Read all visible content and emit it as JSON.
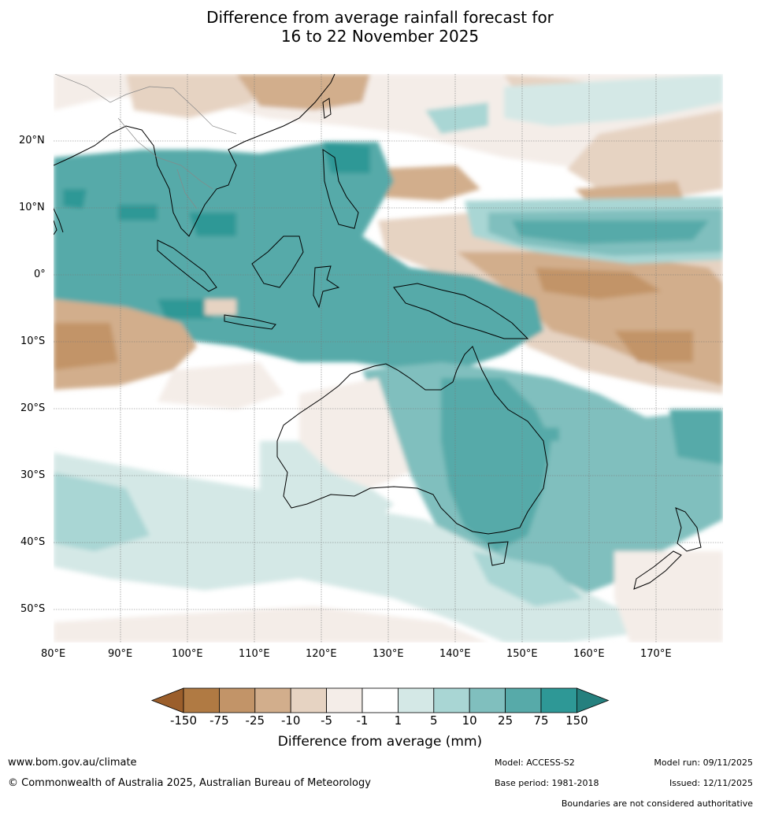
{
  "title": {
    "line1": "Difference from average rainfall forecast for",
    "line2": "16 to 22 November 2025"
  },
  "axes": {
    "lat_labels": [
      "20°N",
      "10°N",
      "0°",
      "10°S",
      "20°S",
      "30°S",
      "40°S",
      "50°S"
    ],
    "lon_labels": [
      "80°E",
      "90°E",
      "100°E",
      "110°E",
      "120°E",
      "130°E",
      "140°E",
      "150°E",
      "160°E",
      "170°E"
    ]
  },
  "colorbar": {
    "title": "Difference from average (mm)",
    "labels": [
      "-150",
      "-75",
      "-25",
      "-10",
      "-5",
      "-1",
      "1",
      "5",
      "10",
      "25",
      "75",
      "150"
    ],
    "colors": [
      "#9b5e2b",
      "#b07a43",
      "#c29468",
      "#d2ae8c",
      "#e6d3c2",
      "#f4ede8",
      "#ffffff",
      "#d4e8e6",
      "#a9d6d4",
      "#80bfbe",
      "#57aaa9",
      "#2e9896",
      "#25807e"
    ]
  },
  "footer": {
    "url": "www.bom.gov.au/climate",
    "copyright": "© Commonwealth of Australia 2025, Australian Bureau of Meteorology",
    "model": "Model: ACCESS-S2",
    "base_period": "Base period: 1981-2018",
    "model_run": "Model run: 09/11/2025",
    "issued": "Issued: 12/11/2025",
    "disclaimer": "Boundaries are not considered authoritative"
  }
}
